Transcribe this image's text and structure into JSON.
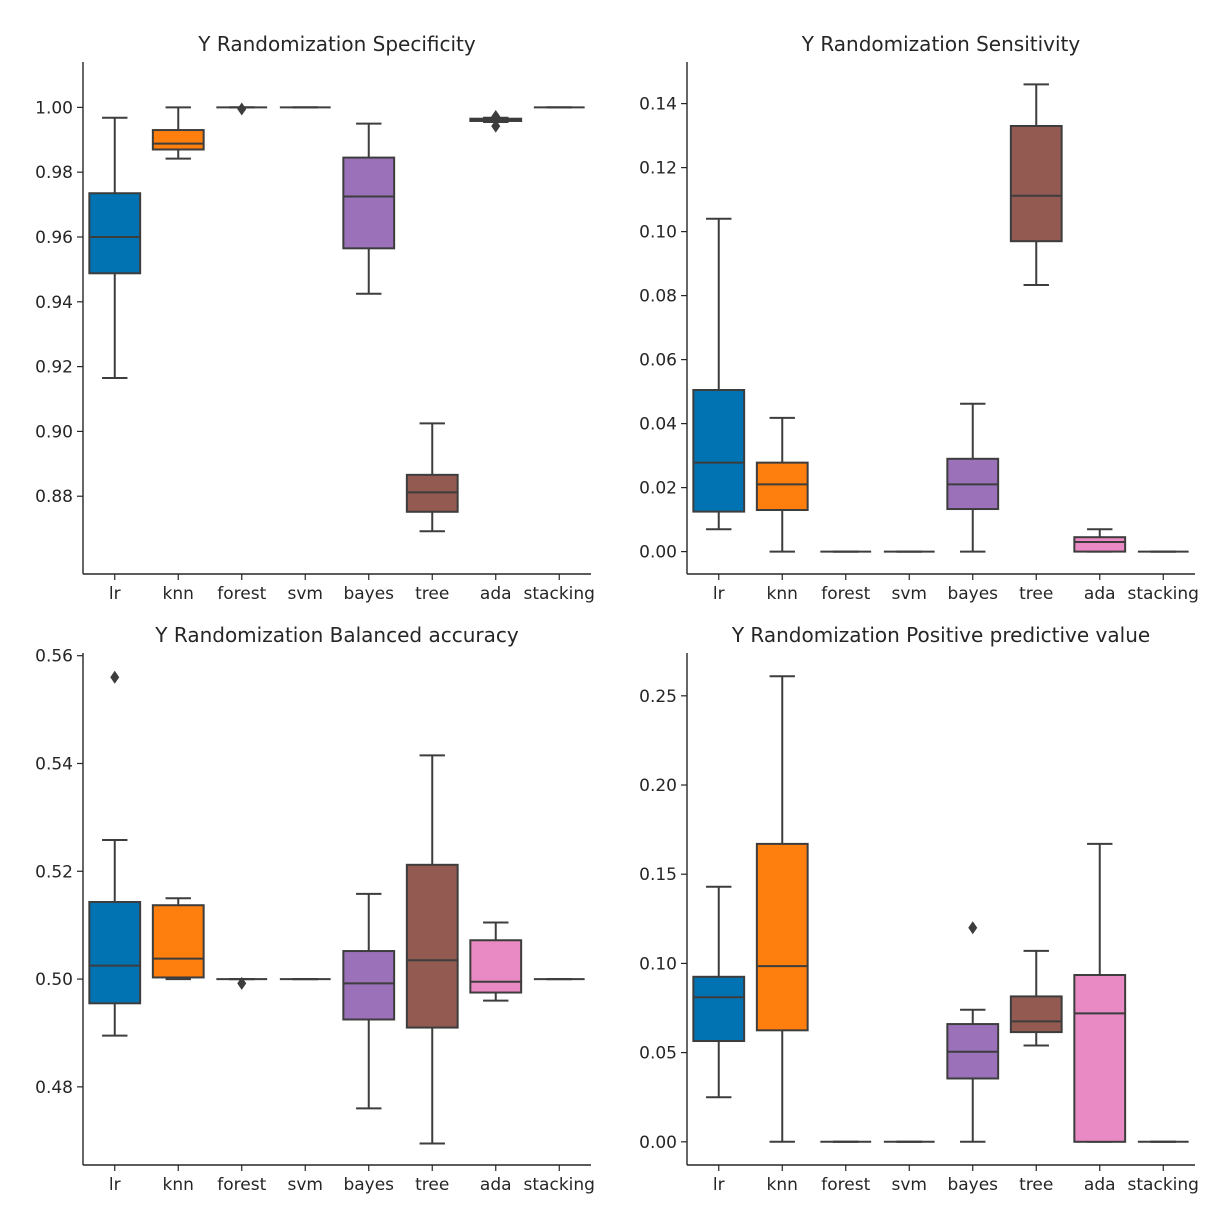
{
  "colors": {
    "lr": "#0173b2",
    "knn": "#ff7f0e",
    "forest": "#029e73",
    "svm": "#d55e00",
    "bayes": "#9b72b9",
    "tree": "#925a51",
    "ada": "#ea8ac4",
    "stacking": "#7f7f7f",
    "line": "#3d3d3d"
  },
  "chart_data": [
    {
      "type": "box",
      "title": "Y Randomization Specificity",
      "categories": [
        "lr",
        "knn",
        "forest",
        "svm",
        "bayes",
        "tree",
        "ada",
        "stacking"
      ],
      "ylim": [
        0.856,
        1.014
      ],
      "yticks": [
        0.88,
        0.9,
        0.92,
        0.94,
        0.96,
        0.98,
        1.0
      ],
      "ytick_labels": [
        "0.88",
        "0.90",
        "0.92",
        "0.94",
        "0.96",
        "0.98",
        "1.00"
      ],
      "boxes": [
        {
          "cat": "lr",
          "whislo": 0.9165,
          "q1": 0.9488,
          "med": 0.96,
          "q3": 0.9735,
          "whishi": 0.9968,
          "fliers": []
        },
        {
          "cat": "knn",
          "whislo": 0.9842,
          "q1": 0.987,
          "med": 0.9888,
          "q3": 0.993,
          "whishi": 1.0,
          "fliers": []
        },
        {
          "cat": "forest",
          "whislo": 1.0,
          "q1": 1.0,
          "med": 1.0,
          "q3": 1.0,
          "whishi": 1.0,
          "fliers": [
            0.9995
          ]
        },
        {
          "cat": "svm",
          "whislo": 1.0,
          "q1": 1.0,
          "med": 1.0,
          "q3": 1.0,
          "whishi": 1.0,
          "fliers": []
        },
        {
          "cat": "bayes",
          "whislo": 0.9425,
          "q1": 0.9565,
          "med": 0.9725,
          "q3": 0.9845,
          "whishi": 0.995,
          "fliers": []
        },
        {
          "cat": "tree",
          "whislo": 0.8692,
          "q1": 0.8752,
          "med": 0.8812,
          "q3": 0.8866,
          "whishi": 0.9025,
          "fliers": []
        },
        {
          "cat": "ada",
          "whislo": 0.9955,
          "q1": 0.9958,
          "med": 0.9962,
          "q3": 0.9965,
          "whishi": 0.9968,
          "fliers": [
            0.9972,
            0.9942
          ]
        },
        {
          "cat": "stacking",
          "whislo": 1.0,
          "q1": 1.0,
          "med": 1.0,
          "q3": 1.0,
          "whishi": 1.0,
          "fliers": []
        }
      ]
    },
    {
      "type": "box",
      "title": "Y Randomization Sensitivity",
      "categories": [
        "lr",
        "knn",
        "forest",
        "svm",
        "bayes",
        "tree",
        "ada",
        "stacking"
      ],
      "ylim": [
        -0.007,
        0.153
      ],
      "yticks": [
        0.0,
        0.02,
        0.04,
        0.06,
        0.08,
        0.1,
        0.12,
        0.14
      ],
      "ytick_labels": [
        "0.00",
        "0.02",
        "0.04",
        "0.06",
        "0.08",
        "0.10",
        "0.12",
        "0.14"
      ],
      "boxes": [
        {
          "cat": "lr",
          "whislo": 0.007,
          "q1": 0.0125,
          "med": 0.0278,
          "q3": 0.0505,
          "whishi": 0.104,
          "fliers": []
        },
        {
          "cat": "knn",
          "whislo": 0.0,
          "q1": 0.013,
          "med": 0.021,
          "q3": 0.0278,
          "whishi": 0.0418,
          "fliers": []
        },
        {
          "cat": "forest",
          "whislo": 0.0,
          "q1": 0.0,
          "med": 0.0,
          "q3": 0.0,
          "whishi": 0.0,
          "fliers": []
        },
        {
          "cat": "svm",
          "whislo": 0.0,
          "q1": 0.0,
          "med": 0.0,
          "q3": 0.0,
          "whishi": 0.0,
          "fliers": []
        },
        {
          "cat": "bayes",
          "whislo": 0.0,
          "q1": 0.0133,
          "med": 0.021,
          "q3": 0.029,
          "whishi": 0.0462,
          "fliers": []
        },
        {
          "cat": "tree",
          "whislo": 0.0833,
          "q1": 0.097,
          "med": 0.1112,
          "q3": 0.133,
          "whishi": 0.146,
          "fliers": []
        },
        {
          "cat": "ada",
          "whislo": 0.0,
          "q1": 0.0,
          "med": 0.003,
          "q3": 0.0045,
          "whishi": 0.007,
          "fliers": []
        },
        {
          "cat": "stacking",
          "whislo": 0.0,
          "q1": 0.0,
          "med": 0.0,
          "q3": 0.0,
          "whishi": 0.0,
          "fliers": []
        }
      ]
    },
    {
      "type": "box",
      "title": "Y Randomization Balanced accuracy",
      "categories": [
        "lr",
        "knn",
        "forest",
        "svm",
        "bayes",
        "tree",
        "ada",
        "stacking"
      ],
      "ylim": [
        0.4655,
        0.5605
      ],
      "yticks": [
        0.48,
        0.5,
        0.52,
        0.54,
        0.56
      ],
      "ytick_labels": [
        "0.48",
        "0.50",
        "0.52",
        "0.54",
        "0.56"
      ],
      "boxes": [
        {
          "cat": "lr",
          "whislo": 0.4895,
          "q1": 0.4955,
          "med": 0.5025,
          "q3": 0.5143,
          "whishi": 0.5258,
          "fliers": [
            0.556
          ]
        },
        {
          "cat": "knn",
          "whislo": 0.5,
          "q1": 0.5003,
          "med": 0.5038,
          "q3": 0.5137,
          "whishi": 0.515,
          "fliers": []
        },
        {
          "cat": "forest",
          "whislo": 0.5,
          "q1": 0.5,
          "med": 0.5,
          "q3": 0.5,
          "whishi": 0.5,
          "fliers": [
            0.4992
          ]
        },
        {
          "cat": "svm",
          "whislo": 0.5,
          "q1": 0.5,
          "med": 0.5,
          "q3": 0.5,
          "whishi": 0.5,
          "fliers": []
        },
        {
          "cat": "bayes",
          "whislo": 0.476,
          "q1": 0.4925,
          "med": 0.4992,
          "q3": 0.5052,
          "whishi": 0.5158,
          "fliers": []
        },
        {
          "cat": "tree",
          "whislo": 0.4695,
          "q1": 0.491,
          "med": 0.5035,
          "q3": 0.5212,
          "whishi": 0.5415,
          "fliers": []
        },
        {
          "cat": "ada",
          "whislo": 0.496,
          "q1": 0.4975,
          "med": 0.4995,
          "q3": 0.5072,
          "whishi": 0.5105,
          "fliers": []
        },
        {
          "cat": "stacking",
          "whislo": 0.5,
          "q1": 0.5,
          "med": 0.5,
          "q3": 0.5,
          "whishi": 0.5,
          "fliers": []
        }
      ]
    },
    {
      "type": "box",
      "title": "Y Randomization Positive predictive value",
      "categories": [
        "lr",
        "knn",
        "forest",
        "svm",
        "bayes",
        "tree",
        "ada",
        "stacking"
      ],
      "ylim": [
        -0.013,
        0.274
      ],
      "yticks": [
        0.0,
        0.05,
        0.1,
        0.15,
        0.2,
        0.25
      ],
      "ytick_labels": [
        "0.00",
        "0.05",
        "0.10",
        "0.15",
        "0.20",
        "0.25"
      ],
      "boxes": [
        {
          "cat": "lr",
          "whislo": 0.025,
          "q1": 0.0565,
          "med": 0.081,
          "q3": 0.0925,
          "whishi": 0.143,
          "fliers": []
        },
        {
          "cat": "knn",
          "whislo": 0.0,
          "q1": 0.0625,
          "med": 0.0985,
          "q3": 0.167,
          "whishi": 0.261,
          "fliers": []
        },
        {
          "cat": "forest",
          "whislo": 0.0,
          "q1": 0.0,
          "med": 0.0,
          "q3": 0.0,
          "whishi": 0.0,
          "fliers": []
        },
        {
          "cat": "svm",
          "whislo": 0.0,
          "q1": 0.0,
          "med": 0.0,
          "q3": 0.0,
          "whishi": 0.0,
          "fliers": []
        },
        {
          "cat": "bayes",
          "whislo": 0.0,
          "q1": 0.0355,
          "med": 0.0505,
          "q3": 0.066,
          "whishi": 0.074,
          "fliers": [
            0.12
          ]
        },
        {
          "cat": "tree",
          "whislo": 0.054,
          "q1": 0.0615,
          "med": 0.0675,
          "q3": 0.0815,
          "whishi": 0.107,
          "fliers": []
        },
        {
          "cat": "ada",
          "whislo": 0.0,
          "q1": 0.0,
          "med": 0.072,
          "q3": 0.0935,
          "whishi": 0.167,
          "fliers": []
        },
        {
          "cat": "stacking",
          "whislo": 0.0,
          "q1": 0.0,
          "med": 0.0,
          "q3": 0.0,
          "whishi": 0.0,
          "fliers": []
        }
      ]
    }
  ]
}
